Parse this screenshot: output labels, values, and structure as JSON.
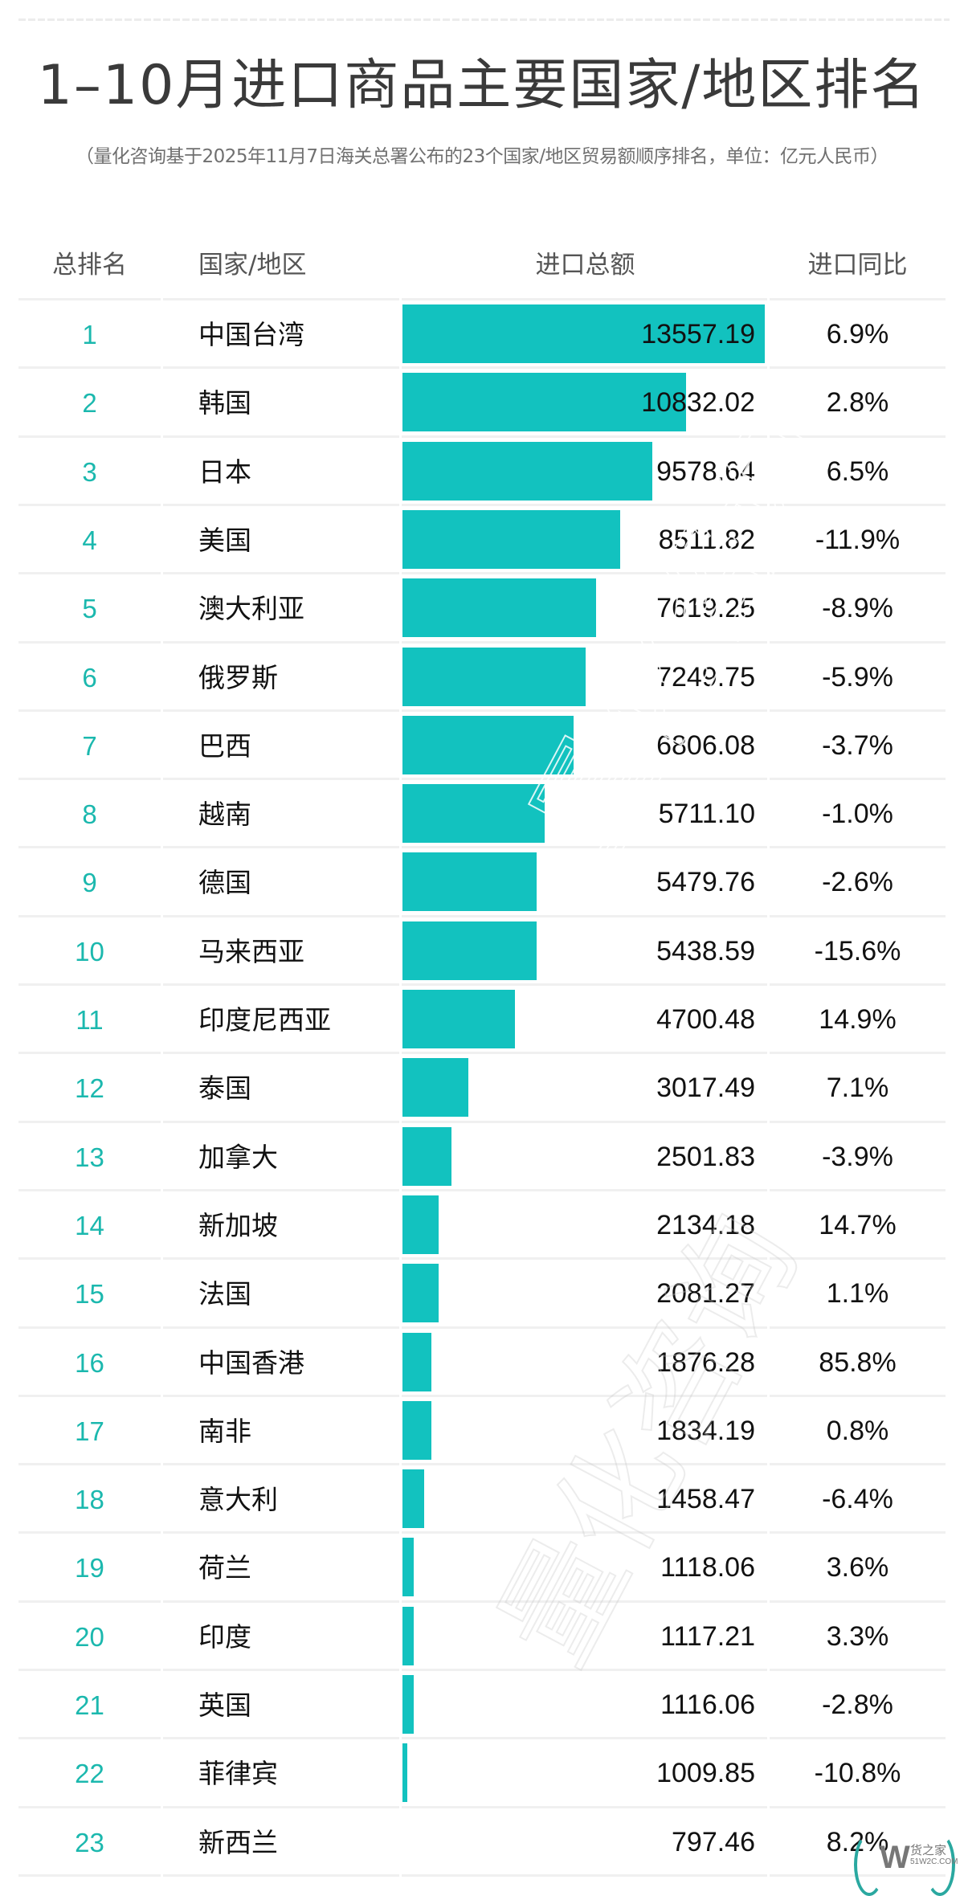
{
  "title": "1–10月进口商品主要国家/地区排名",
  "subtitle": "（量化咨询基于2025年11月7日海关总署公布的23个国家/地区贸易额顺序排名，单位：亿元人民币）",
  "headers": {
    "rank": "总排名",
    "country": "国家/地区",
    "amount": "进口总额",
    "yoy": "进口同比"
  },
  "colors": {
    "bar": "#12C2BF",
    "rank": "#1BB8AE",
    "text": "#111111",
    "header": "#555555",
    "title": "#3A3A3A",
    "separator": "#F0F0F0"
  },
  "watermark": {
    "text": "量化咨询"
  },
  "logo": {
    "mark": "W",
    "name": "货之家",
    "url_text": "51W2C.COM"
  },
  "rows": [
    {
      "rank": "1",
      "country": "中国台湾",
      "amount": "13557.19",
      "yoy": "6.9%",
      "bar_pct": 100
    },
    {
      "rank": "2",
      "country": "韩国",
      "amount": "10832.02",
      "yoy": "2.8%",
      "bar_pct": 78.3
    },
    {
      "rank": "3",
      "country": "日本",
      "amount": "9578.64",
      "yoy": "6.5%",
      "bar_pct": 69.0
    },
    {
      "rank": "4",
      "country": "美国",
      "amount": "8511.82",
      "yoy": "-11.9%",
      "bar_pct": 60.1
    },
    {
      "rank": "5",
      "country": "澳大利亚",
      "amount": "7619.25",
      "yoy": "-8.9%",
      "bar_pct": 53.4
    },
    {
      "rank": "6",
      "country": "俄罗斯",
      "amount": "7249.75",
      "yoy": "-5.9%",
      "bar_pct": 50.6
    },
    {
      "rank": "7",
      "country": "巴西",
      "amount": "6806.08",
      "yoy": "-3.7%",
      "bar_pct": 47.2
    },
    {
      "rank": "8",
      "country": "越南",
      "amount": "5711.10",
      "yoy": "-1.0%",
      "bar_pct": 39.2
    },
    {
      "rank": "9",
      "country": "德国",
      "amount": "5479.76",
      "yoy": "-2.6%",
      "bar_pct": 37.0
    },
    {
      "rank": "10",
      "country": "马来西亚",
      "amount": "5438.59",
      "yoy": "-15.6%",
      "bar_pct": 37.0
    },
    {
      "rank": "11",
      "country": "印度尼西亚",
      "amount": "4700.48",
      "yoy": "14.9%",
      "bar_pct": 31.0
    },
    {
      "rank": "12",
      "country": "泰国",
      "amount": "3017.49",
      "yoy": "7.1%",
      "bar_pct": 18.2
    },
    {
      "rank": "13",
      "country": "加拿大",
      "amount": "2501.83",
      "yoy": "-3.9%",
      "bar_pct": 13.5
    },
    {
      "rank": "14",
      "country": "新加坡",
      "amount": "2134.18",
      "yoy": "14.7%",
      "bar_pct": 10.0
    },
    {
      "rank": "15",
      "country": "法国",
      "amount": "2081.27",
      "yoy": "1.1%",
      "bar_pct": 10.0
    },
    {
      "rank": "16",
      "country": "中国香港",
      "amount": "1876.28",
      "yoy": "85.8%",
      "bar_pct": 8.0
    },
    {
      "rank": "17",
      "country": "南非",
      "amount": "1834.19",
      "yoy": "0.8%",
      "bar_pct": 8.0
    },
    {
      "rank": "18",
      "country": "意大利",
      "amount": "1458.47",
      "yoy": "-6.4%",
      "bar_pct": 6.0
    },
    {
      "rank": "19",
      "country": "荷兰",
      "amount": "1118.06",
      "yoy": "3.6%",
      "bar_pct": 3.1
    },
    {
      "rank": "20",
      "country": "印度",
      "amount": "1117.21",
      "yoy": "3.3%",
      "bar_pct": 3.1
    },
    {
      "rank": "21",
      "country": "英国",
      "amount": "1116.06",
      "yoy": "-2.8%",
      "bar_pct": 3.1
    },
    {
      "rank": "22",
      "country": "菲律宾",
      "amount": "1009.85",
      "yoy": "-10.8%",
      "bar_pct": 1.3
    },
    {
      "rank": "23",
      "country": "新西兰",
      "amount": "797.46",
      "yoy": "8.2%",
      "bar_pct": 0
    }
  ],
  "chart_data": {
    "type": "bar",
    "title": "1–10月进口商品主要国家/地区排名",
    "subtitle": "（量化咨询基于2025年11月7日海关总署公布的23个国家/地区贸易额顺序排名，单位：亿元人民币）",
    "orientation": "horizontal",
    "xlabel": "进口总额",
    "ylabel": "国家/地区",
    "unit": "亿元人民币",
    "categories": [
      "中国台湾",
      "韩国",
      "日本",
      "美国",
      "澳大利亚",
      "俄罗斯",
      "巴西",
      "越南",
      "德国",
      "马来西亚",
      "印度尼西亚",
      "泰国",
      "加拿大",
      "新加坡",
      "法国",
      "中国香港",
      "南非",
      "意大利",
      "荷兰",
      "印度",
      "英国",
      "菲律宾",
      "新西兰"
    ],
    "series": [
      {
        "name": "进口总额",
        "values": [
          13557.19,
          10832.02,
          9578.64,
          8511.82,
          7619.25,
          7249.75,
          6806.08,
          5711.1,
          5479.76,
          5438.59,
          4700.48,
          3017.49,
          2501.83,
          2134.18,
          2081.27,
          1876.28,
          1834.19,
          1458.47,
          1118.06,
          1117.21,
          1116.06,
          1009.85,
          797.46
        ]
      },
      {
        "name": "进口同比(%)",
        "values": [
          6.9,
          2.8,
          6.5,
          -11.9,
          -8.9,
          -5.9,
          -3.7,
          -1.0,
          -2.6,
          -15.6,
          14.9,
          7.1,
          -3.9,
          14.7,
          1.1,
          85.8,
          0.8,
          -6.4,
          3.6,
          3.3,
          -2.8,
          -10.8,
          8.2
        ]
      }
    ],
    "columns": [
      "总排名",
      "国家/地区",
      "进口总额",
      "进口同比"
    ],
    "grid": false,
    "legend": "none"
  }
}
